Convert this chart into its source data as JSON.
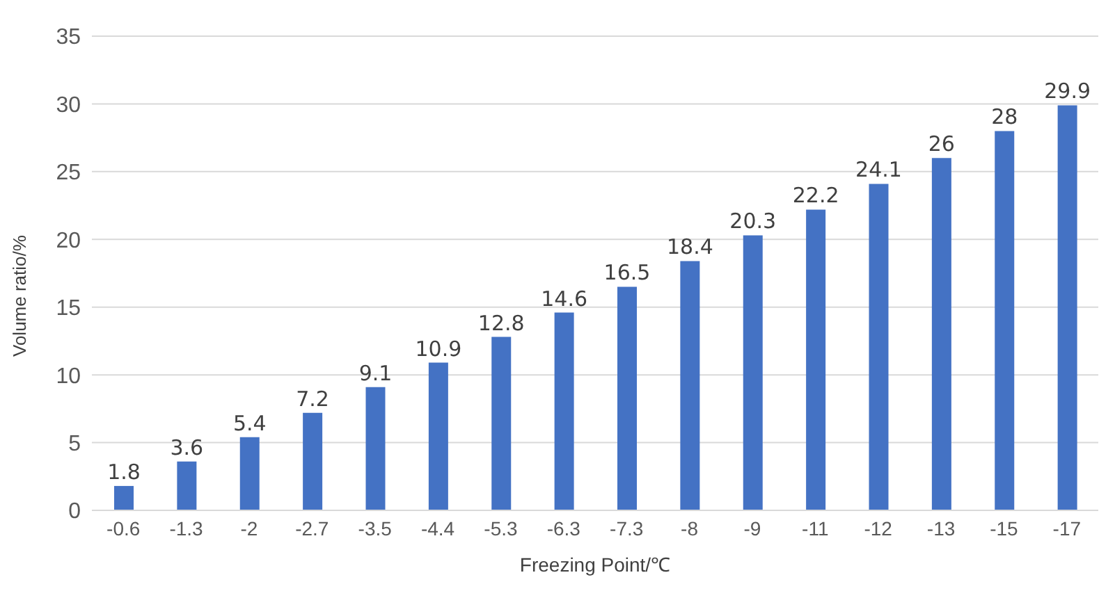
{
  "chart_data": {
    "type": "bar",
    "xlabel": "Freezing Point/℃",
    "ylabel": "Volume ratio/%",
    "categories": [
      "-0.6",
      "-1.3",
      "-2",
      "-2.7",
      "-3.5",
      "-4.4",
      "-5.3",
      "-6.3",
      "-7.3",
      "-8",
      "-9",
      "-11",
      "-12",
      "-13",
      "-15",
      "-17"
    ],
    "values": [
      1.8,
      3.6,
      5.4,
      7.2,
      9.1,
      10.9,
      12.8,
      14.6,
      16.5,
      18.4,
      20.3,
      22.2,
      24.1,
      26,
      28,
      29.9
    ],
    "color": "#4472c4",
    "ylim": [
      0,
      35
    ],
    "yticks": [
      0,
      5,
      10,
      15,
      20,
      25,
      30,
      35
    ],
    "grid": "y",
    "data_labels": true,
    "legend": false
  }
}
